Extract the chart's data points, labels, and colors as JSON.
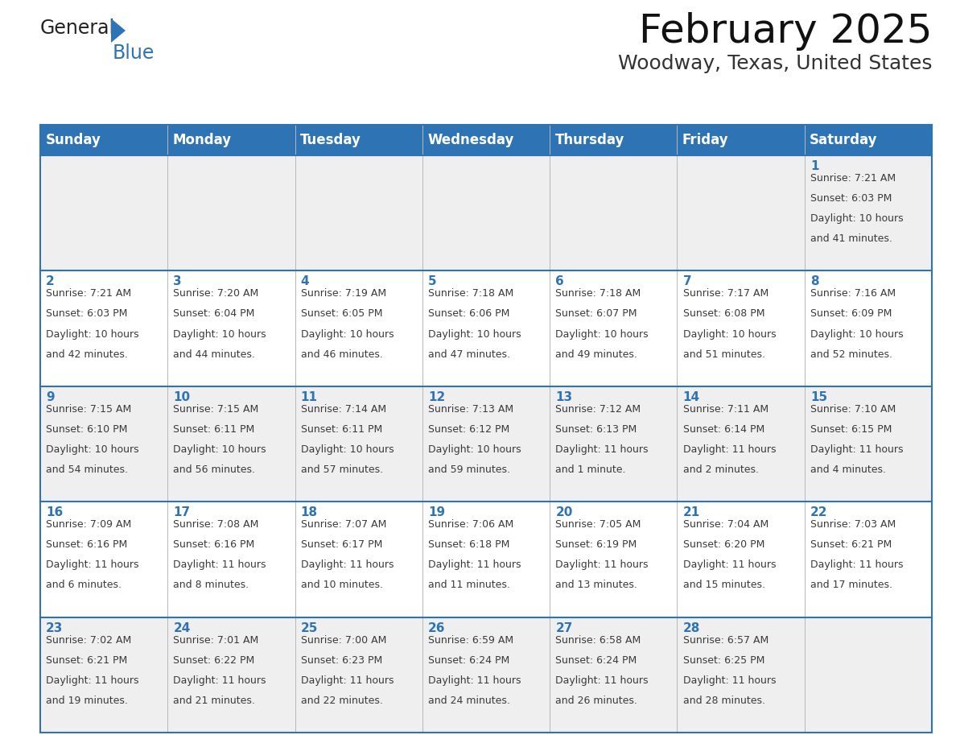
{
  "title": "February 2025",
  "subtitle": "Woodway, Texas, United States",
  "header_color": "#2e74b5",
  "header_text_color": "#ffffff",
  "row_bg_colors": [
    "#efefef",
    "#ffffff",
    "#efefef",
    "#ffffff",
    "#efefef"
  ],
  "day_text_color": "#2e74b5",
  "info_text_color": "#3a3a3a",
  "border_color": "#2e74b5",
  "grid_color": "#c0c0c0",
  "days_of_week": [
    "Sunday",
    "Monday",
    "Tuesday",
    "Wednesday",
    "Thursday",
    "Friday",
    "Saturday"
  ],
  "calendar_data": [
    [
      {
        "day": null,
        "sunrise": null,
        "sunset": null,
        "daylight": null
      },
      {
        "day": null,
        "sunrise": null,
        "sunset": null,
        "daylight": null
      },
      {
        "day": null,
        "sunrise": null,
        "sunset": null,
        "daylight": null
      },
      {
        "day": null,
        "sunrise": null,
        "sunset": null,
        "daylight": null
      },
      {
        "day": null,
        "sunrise": null,
        "sunset": null,
        "daylight": null
      },
      {
        "day": null,
        "sunrise": null,
        "sunset": null,
        "daylight": null
      },
      {
        "day": 1,
        "sunrise": "7:21 AM",
        "sunset": "6:03 PM",
        "daylight": "10 hours and 41 minutes."
      }
    ],
    [
      {
        "day": 2,
        "sunrise": "7:21 AM",
        "sunset": "6:03 PM",
        "daylight": "10 hours and 42 minutes."
      },
      {
        "day": 3,
        "sunrise": "7:20 AM",
        "sunset": "6:04 PM",
        "daylight": "10 hours and 44 minutes."
      },
      {
        "day": 4,
        "sunrise": "7:19 AM",
        "sunset": "6:05 PM",
        "daylight": "10 hours and 46 minutes."
      },
      {
        "day": 5,
        "sunrise": "7:18 AM",
        "sunset": "6:06 PM",
        "daylight": "10 hours and 47 minutes."
      },
      {
        "day": 6,
        "sunrise": "7:18 AM",
        "sunset": "6:07 PM",
        "daylight": "10 hours and 49 minutes."
      },
      {
        "day": 7,
        "sunrise": "7:17 AM",
        "sunset": "6:08 PM",
        "daylight": "10 hours and 51 minutes."
      },
      {
        "day": 8,
        "sunrise": "7:16 AM",
        "sunset": "6:09 PM",
        "daylight": "10 hours and 52 minutes."
      }
    ],
    [
      {
        "day": 9,
        "sunrise": "7:15 AM",
        "sunset": "6:10 PM",
        "daylight": "10 hours and 54 minutes."
      },
      {
        "day": 10,
        "sunrise": "7:15 AM",
        "sunset": "6:11 PM",
        "daylight": "10 hours and 56 minutes."
      },
      {
        "day": 11,
        "sunrise": "7:14 AM",
        "sunset": "6:11 PM",
        "daylight": "10 hours and 57 minutes."
      },
      {
        "day": 12,
        "sunrise": "7:13 AM",
        "sunset": "6:12 PM",
        "daylight": "10 hours and 59 minutes."
      },
      {
        "day": 13,
        "sunrise": "7:12 AM",
        "sunset": "6:13 PM",
        "daylight": "11 hours and 1 minute."
      },
      {
        "day": 14,
        "sunrise": "7:11 AM",
        "sunset": "6:14 PM",
        "daylight": "11 hours and 2 minutes."
      },
      {
        "day": 15,
        "sunrise": "7:10 AM",
        "sunset": "6:15 PM",
        "daylight": "11 hours and 4 minutes."
      }
    ],
    [
      {
        "day": 16,
        "sunrise": "7:09 AM",
        "sunset": "6:16 PM",
        "daylight": "11 hours and 6 minutes."
      },
      {
        "day": 17,
        "sunrise": "7:08 AM",
        "sunset": "6:16 PM",
        "daylight": "11 hours and 8 minutes."
      },
      {
        "day": 18,
        "sunrise": "7:07 AM",
        "sunset": "6:17 PM",
        "daylight": "11 hours and 10 minutes."
      },
      {
        "day": 19,
        "sunrise": "7:06 AM",
        "sunset": "6:18 PM",
        "daylight": "11 hours and 11 minutes."
      },
      {
        "day": 20,
        "sunrise": "7:05 AM",
        "sunset": "6:19 PM",
        "daylight": "11 hours and 13 minutes."
      },
      {
        "day": 21,
        "sunrise": "7:04 AM",
        "sunset": "6:20 PM",
        "daylight": "11 hours and 15 minutes."
      },
      {
        "day": 22,
        "sunrise": "7:03 AM",
        "sunset": "6:21 PM",
        "daylight": "11 hours and 17 minutes."
      }
    ],
    [
      {
        "day": 23,
        "sunrise": "7:02 AM",
        "sunset": "6:21 PM",
        "daylight": "11 hours and 19 minutes."
      },
      {
        "day": 24,
        "sunrise": "7:01 AM",
        "sunset": "6:22 PM",
        "daylight": "11 hours and 21 minutes."
      },
      {
        "day": 25,
        "sunrise": "7:00 AM",
        "sunset": "6:23 PM",
        "daylight": "11 hours and 22 minutes."
      },
      {
        "day": 26,
        "sunrise": "6:59 AM",
        "sunset": "6:24 PM",
        "daylight": "11 hours and 24 minutes."
      },
      {
        "day": 27,
        "sunrise": "6:58 AM",
        "sunset": "6:24 PM",
        "daylight": "11 hours and 26 minutes."
      },
      {
        "day": 28,
        "sunrise": "6:57 AM",
        "sunset": "6:25 PM",
        "daylight": "11 hours and 28 minutes."
      },
      {
        "day": null,
        "sunrise": null,
        "sunset": null,
        "daylight": null
      }
    ]
  ],
  "logo_text_general": "General",
  "logo_text_blue": "Blue",
  "logo_triangle_color": "#2e74b5",
  "title_fontsize": 36,
  "subtitle_fontsize": 18,
  "header_fontsize": 12,
  "day_num_fontsize": 11,
  "info_fontsize": 9
}
